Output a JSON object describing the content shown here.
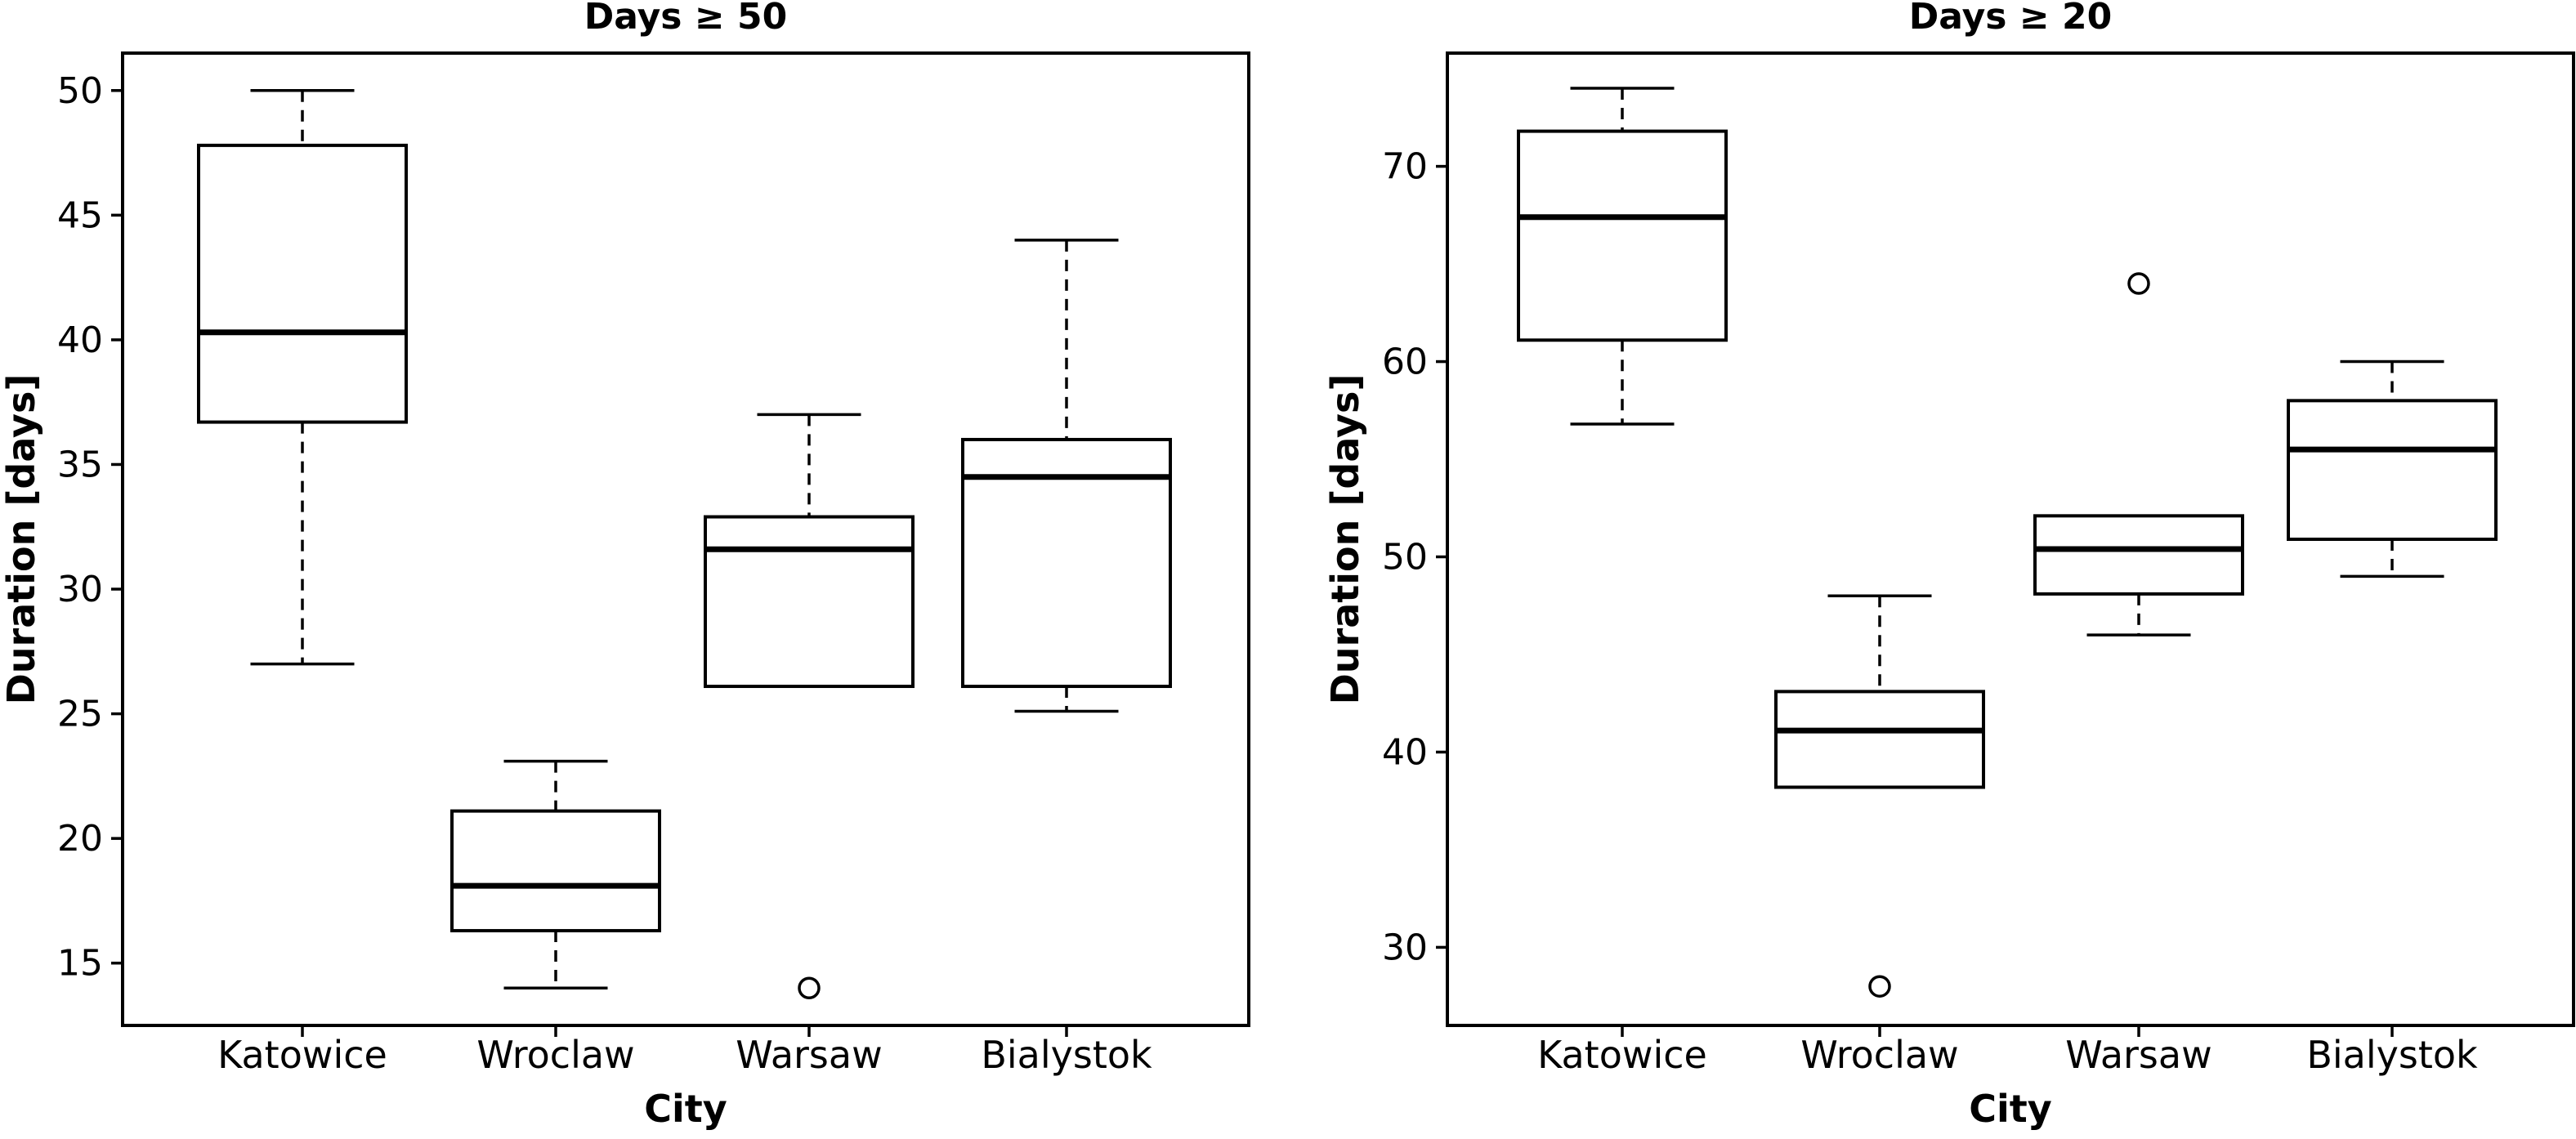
{
  "chart_data": [
    {
      "type": "boxplot",
      "title": "Days ≥ 50",
      "xlabel": "City",
      "ylabel": "Duration [days]",
      "categories": [
        "Katowice",
        "Wroclaw",
        "Warsaw",
        "Bialystok"
      ],
      "ylim": [
        12.5,
        51.5
      ],
      "yticks": [
        15,
        20,
        25,
        30,
        35,
        40,
        45,
        50
      ],
      "boxes": [
        {
          "category": "Katowice",
          "whisker_low": 27,
          "q1": 36.7,
          "median": 40.3,
          "q3": 47.8,
          "whisker_high": 50,
          "outliers": []
        },
        {
          "category": "Wroclaw",
          "whisker_low": 14,
          "q1": 16.3,
          "median": 18.1,
          "q3": 21.1,
          "whisker_high": 23.1,
          "outliers": []
        },
        {
          "category": "Warsaw",
          "whisker_low": 26.1,
          "q1": 26.1,
          "median": 31.6,
          "q3": 32.9,
          "whisker_high": 37,
          "outliers": [
            14
          ]
        },
        {
          "category": "Bialystok",
          "whisker_low": 25.1,
          "q1": 26.1,
          "median": 34.5,
          "q3": 36,
          "whisker_high": 44,
          "outliers": []
        }
      ]
    },
    {
      "type": "boxplot",
      "title": "Days ≥ 20",
      "xlabel": "City",
      "ylabel": "Duration [days]",
      "categories": [
        "Katowice",
        "Wroclaw",
        "Warsaw",
        "Bialystok"
      ],
      "ylim": [
        26.0,
        75.8
      ],
      "yticks": [
        30,
        40,
        50,
        60,
        70
      ],
      "boxes": [
        {
          "category": "Katowice",
          "whisker_low": 56.8,
          "q1": 61.1,
          "median": 67.4,
          "q3": 71.8,
          "whisker_high": 74,
          "outliers": []
        },
        {
          "category": "Wroclaw",
          "whisker_low": 38.2,
          "q1": 38.2,
          "median": 41.1,
          "q3": 43.1,
          "whisker_high": 48,
          "outliers": [
            28
          ]
        },
        {
          "category": "Warsaw",
          "whisker_low": 46,
          "q1": 48.1,
          "median": 50.4,
          "q3": 52.1,
          "whisker_high": 52.1,
          "outliers": [
            64
          ]
        },
        {
          "category": "Bialystok",
          "whisker_low": 49,
          "q1": 50.9,
          "median": 55.5,
          "q3": 58,
          "whisker_high": 60,
          "outliers": []
        }
      ]
    }
  ]
}
